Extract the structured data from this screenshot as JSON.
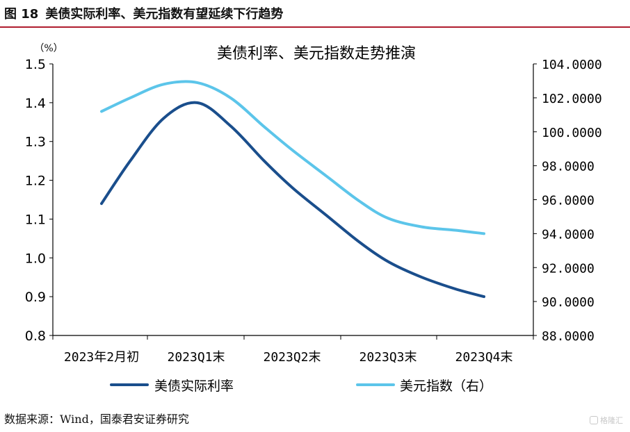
{
  "figure": {
    "number": "图 18",
    "caption": "美债实际利率、美元指数有望延续下行趋势"
  },
  "source_note": "数据来源：Wind，国泰君安证券研究",
  "watermark": "格隆汇",
  "chart_data": {
    "type": "line",
    "title": "美债利率、美元指数走势推演",
    "left_axis_unit": "（%）",
    "categories": [
      "2023年2月初",
      "2023Q1末",
      "2023Q2末",
      "2023Q3末",
      "2023Q4末"
    ],
    "x_positions": [
      0,
      1.0,
      2.0,
      3.0,
      4.0
    ],
    "ylim_left": [
      0.8,
      1.5
    ],
    "yticks_left": [
      "0.8",
      "0.9",
      "1.0",
      "1.1",
      "1.2",
      "1.3",
      "1.4",
      "1.5"
    ],
    "ylim_right": [
      88,
      104
    ],
    "yticks_right": [
      "88.0000",
      "90.0000",
      "92.0000",
      "94.0000",
      "96.0000",
      "98.0000",
      "100.0000",
      "102.0000",
      "104.0000"
    ],
    "grid": false,
    "legend_position": "bottom",
    "series": [
      {
        "name": "美债实际利率",
        "axis": "left",
        "color": "#1a4e8c",
        "points": [
          [
            0,
            1.14
          ],
          [
            0.3,
            1.25
          ],
          [
            0.65,
            1.36
          ],
          [
            1.0,
            1.4
          ],
          [
            1.35,
            1.34
          ],
          [
            1.7,
            1.25
          ],
          [
            2.0,
            1.18
          ],
          [
            2.35,
            1.11
          ],
          [
            2.7,
            1.04
          ],
          [
            3.0,
            0.99
          ],
          [
            3.35,
            0.95
          ],
          [
            3.7,
            0.92
          ],
          [
            4.0,
            0.9
          ]
        ]
      },
      {
        "name": "美元指数（右）",
        "axis": "right",
        "color": "#5cc5ea",
        "points": [
          [
            0,
            101.2
          ],
          [
            0.3,
            102.0
          ],
          [
            0.65,
            102.8
          ],
          [
            1.0,
            102.9
          ],
          [
            1.35,
            102.0
          ],
          [
            1.7,
            100.3
          ],
          [
            2.0,
            98.9
          ],
          [
            2.35,
            97.4
          ],
          [
            2.7,
            95.9
          ],
          [
            3.0,
            94.9
          ],
          [
            3.35,
            94.4
          ],
          [
            3.7,
            94.2
          ],
          [
            4.0,
            94.0
          ]
        ]
      }
    ]
  }
}
